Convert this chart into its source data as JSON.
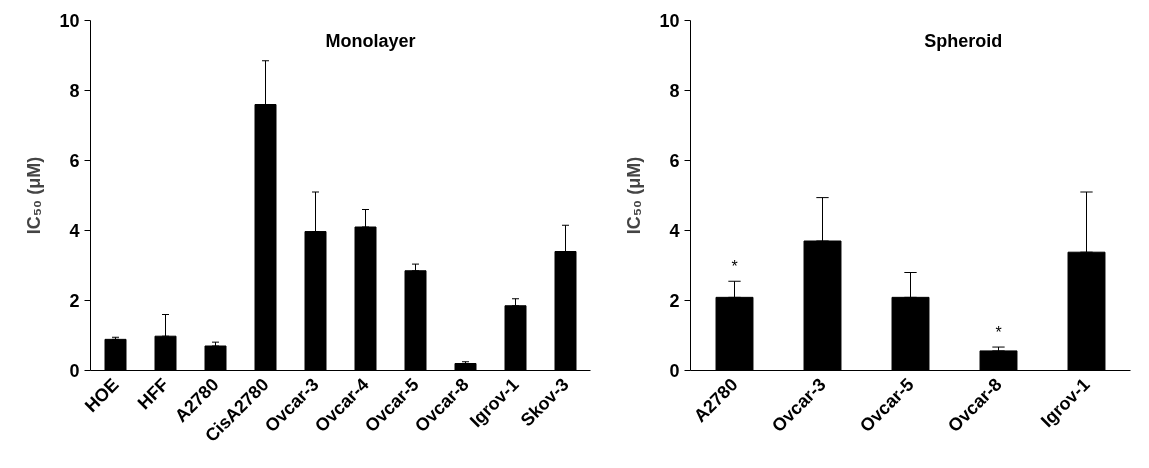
{
  "chart_data": [
    {
      "type": "bar",
      "title": "Monolayer",
      "ylabel": "IC₅₀ (μM)",
      "categories": [
        "HOE",
        "HFF",
        "A2780",
        "CisA2780",
        "Ovcar-3",
        "Ovcar-4",
        "Ovcar-5",
        "Ovcar-8",
        "Igrov-1",
        "Skov-3"
      ],
      "values": [
        0.89,
        0.98,
        0.7,
        7.6,
        3.97,
        4.1,
        2.85,
        0.2,
        1.85,
        3.4
      ],
      "errors": [
        [
          0.89,
          0.95
        ],
        [
          0.98,
          1.6
        ],
        [
          0.7,
          0.81
        ],
        [
          7.6,
          8.85
        ],
        [
          3.97,
          5.1
        ],
        [
          4.1,
          4.6
        ],
        [
          2.85,
          3.04
        ],
        [
          0.2,
          0.25
        ],
        [
          1.85,
          2.05
        ],
        [
          3.4,
          4.15
        ]
      ],
      "color": "#000000",
      "ylim": [
        0,
        10
      ],
      "yticks": [
        0,
        2,
        4,
        6,
        8,
        10
      ],
      "grid": false
    },
    {
      "type": "bar",
      "title": "Spheroid",
      "ylabel": "IC₅₀ (μM)",
      "categories": [
        "A2780",
        "Ovcar-3",
        "Ovcar-5",
        "Ovcar-8",
        "Igrov-1"
      ],
      "values": [
        2.09,
        3.7,
        2.09,
        0.56,
        3.38
      ],
      "errors": [
        [
          2.09,
          2.55
        ],
        [
          3.7,
          4.94
        ],
        [
          2.09,
          2.8
        ],
        [
          0.56,
          0.67
        ],
        [
          3.38,
          5.1
        ]
      ],
      "annotations": [
        {
          "text": "*",
          "x": "A2780",
          "y": 2.55
        },
        {
          "text": "*",
          "x": "Ovcar-8",
          "y": 0.67
        }
      ],
      "color": "#000000",
      "ylim": [
        0,
        10
      ],
      "yticks": [
        0,
        2,
        4,
        6,
        8,
        10
      ],
      "grid": false
    }
  ]
}
